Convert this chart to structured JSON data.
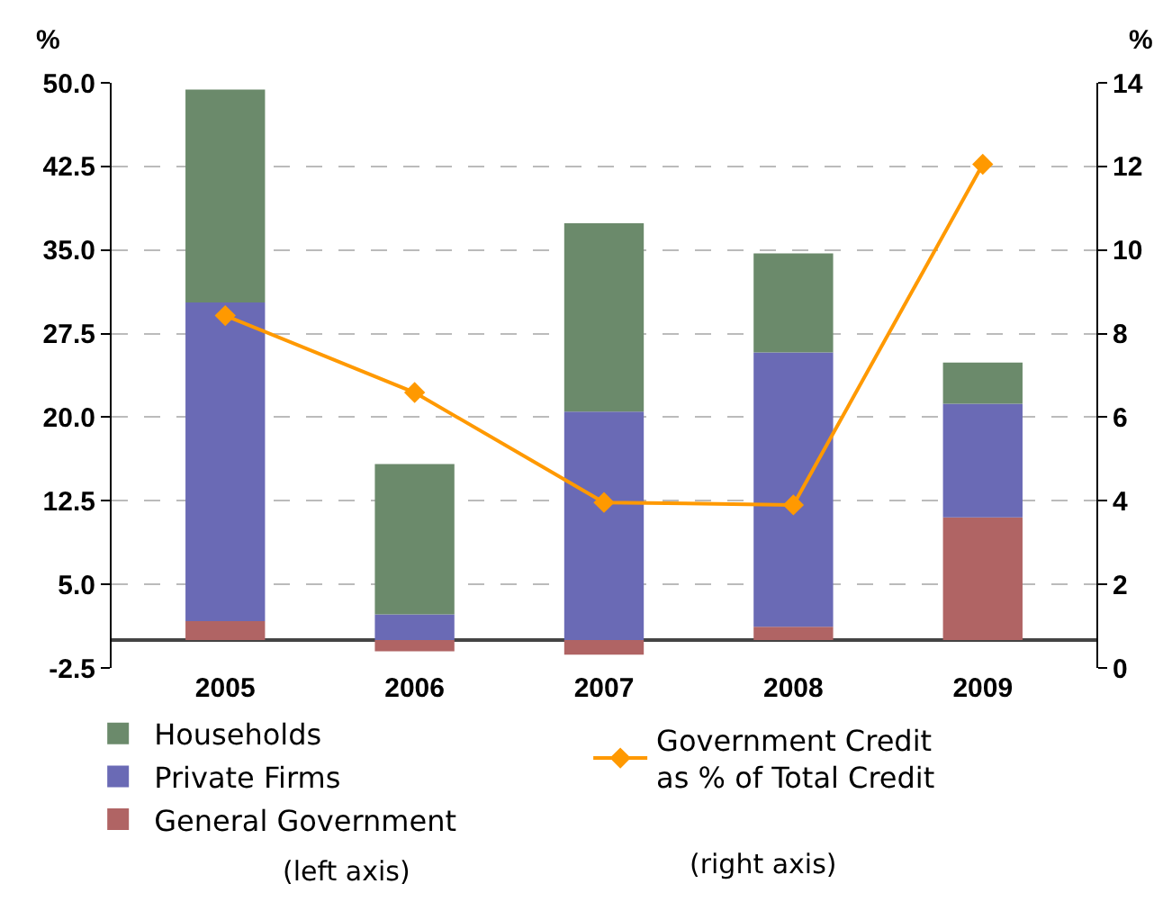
{
  "chart_data": {
    "type": "bar",
    "stacked": true,
    "categories": [
      "2005",
      "2006",
      "2007",
      "2008",
      "2009"
    ],
    "series": [
      {
        "name": "General Government",
        "color": "#b06464",
        "values": [
          1.7,
          -1.0,
          -1.3,
          1.2,
          11.0
        ]
      },
      {
        "name": "Private Firms",
        "color": "#6a6ab5",
        "values": [
          28.6,
          2.3,
          20.5,
          24.6,
          10.2
        ]
      },
      {
        "name": "Households",
        "color": "#6b8a6b",
        "values": [
          19.1,
          13.5,
          16.9,
          8.9,
          3.7
        ]
      },
      {
        "name": "Government Credit\nas % of Total Credit",
        "type": "line",
        "axis": "y2",
        "color": "#ff9900",
        "values": [
          8.43,
          6.59,
          3.96,
          3.9,
          12.05
        ]
      }
    ],
    "ylabel": "%",
    "y2label": "%",
    "ylim": [
      -2.5,
      50
    ],
    "yticks": [
      {
        "value": -2.5,
        "label": "-2.5"
      },
      {
        "value": 5,
        "label": "5.0"
      },
      {
        "value": 12.5,
        "label": "12.5"
      },
      {
        "value": 20,
        "label": "20.0"
      },
      {
        "value": 27.5,
        "label": "27.5"
      },
      {
        "value": 35,
        "label": "35.0"
      },
      {
        "value": 42.5,
        "label": "42.5"
      },
      {
        "value": 50,
        "label": "50.0"
      }
    ],
    "y2lim": [
      0,
      14
    ],
    "y2ticks": [
      0,
      2,
      4,
      6,
      8,
      10,
      12,
      14
    ],
    "grid": "y",
    "legend": "bottom",
    "marker": "diamond",
    "line_style": "solid",
    "annotations": [
      "(left axis)",
      "(right axis)"
    ]
  }
}
